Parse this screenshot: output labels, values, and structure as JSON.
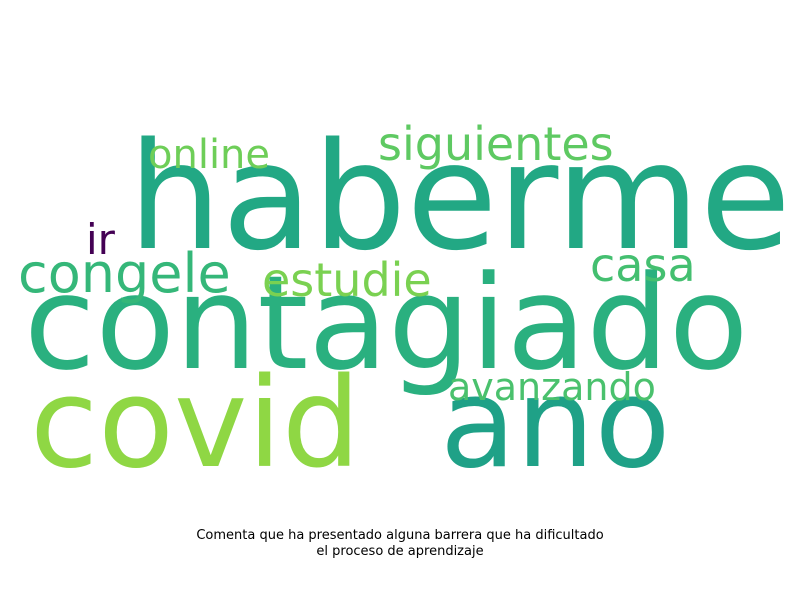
{
  "caption": {
    "line1": "Comenta que ha presentado alguna barrera que ha dificultado",
    "line2": "el proceso de aprendizaje"
  },
  "words": [
    {
      "id": "haberme",
      "text": "haberme",
      "color": "#22a884"
    },
    {
      "id": "contagiado",
      "text": "contagiado",
      "color": "#2ab07f"
    },
    {
      "id": "covid",
      "text": "covid",
      "color": "#8fd744"
    },
    {
      "id": "ano",
      "text": "ano",
      "color": "#1fa187"
    },
    {
      "id": "siguientes",
      "text": "siguientes",
      "color": "#5ec962"
    },
    {
      "id": "online",
      "text": "online",
      "color": "#6ece58"
    },
    {
      "id": "congele",
      "text": "congele",
      "color": "#35b779"
    },
    {
      "id": "estudie",
      "text": "estudie",
      "color": "#7ad151"
    },
    {
      "id": "casa",
      "text": "casa",
      "color": "#44bf70"
    },
    {
      "id": "avanzando",
      "text": "avanzando",
      "color": "#4ac16d"
    },
    {
      "id": "ir",
      "text": "ir",
      "color": "#440154"
    }
  ]
}
